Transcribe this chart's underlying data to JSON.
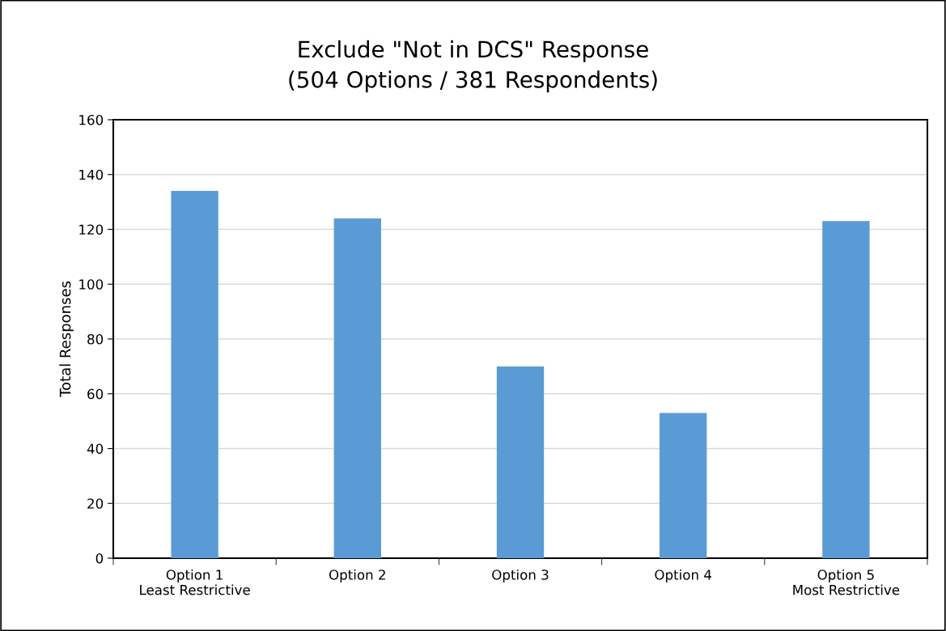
{
  "chart_data": {
    "type": "bar",
    "title": "Exclude \"Not in DCS\" Response\n(504 Options / 381 Respondents)",
    "ylabel": "Total Responses",
    "categories": [
      "Option 1\nLeast Restrictive",
      "Option 2",
      "Option 3",
      "Option 4",
      "Option 5\nMost Restrictive"
    ],
    "values": [
      134,
      124,
      70,
      53,
      123
    ],
    "color": "#5b9bd5",
    "ylim": [
      0,
      160
    ],
    "yticks": [
      0,
      20,
      40,
      60,
      80,
      100,
      120,
      140,
      160
    ],
    "grid": "y"
  }
}
